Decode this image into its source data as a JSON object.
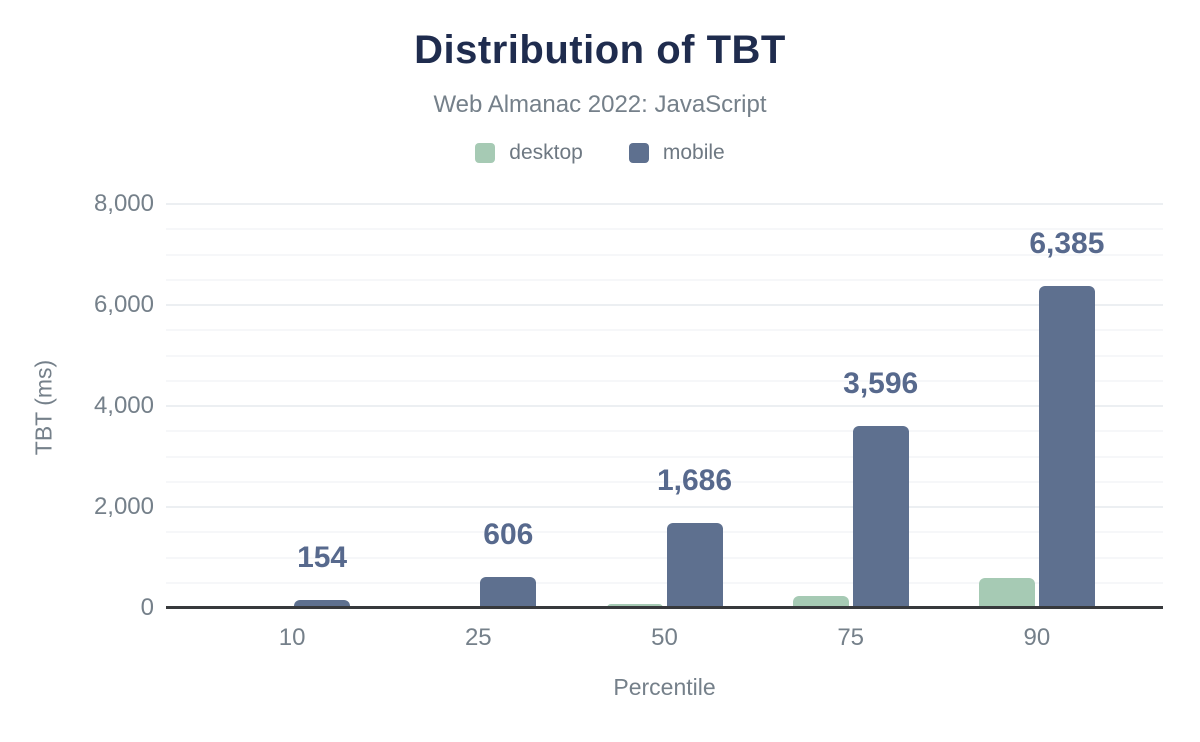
{
  "styles": {
    "page_background": "#ffffff",
    "title_color": "#1f2c4e",
    "muted_text_color": "#75808a",
    "legend_text_color": "#6e7882",
    "data_label_color": "#57698d",
    "axis_line_color": "#37393c",
    "grid_major_color": "#eceff2",
    "grid_minor_color": "#f6f7f9",
    "desktop_color": "#a6cab4",
    "mobile_color": "#5e708f"
  },
  "chart_data": {
    "type": "bar",
    "title": "Distribution of TBT",
    "subtitle": "Web Almanac 2022: JavaScript",
    "xlabel": "Percentile",
    "ylabel": "TBT (ms)",
    "categories": [
      "10",
      "25",
      "50",
      "75",
      "90"
    ],
    "series": [
      {
        "name": "desktop",
        "color": "#a6cab4",
        "values": [
          0,
          0,
          80,
          240,
          600
        ],
        "data_labels": [
          "",
          "",
          "",
          "",
          ""
        ]
      },
      {
        "name": "mobile",
        "color": "#5e708f",
        "values": [
          154,
          606,
          1686,
          3596,
          6385
        ],
        "data_labels": [
          "154",
          "606",
          "1,686",
          "3,596",
          "6,385"
        ]
      }
    ],
    "ylim": [
      0,
      8000
    ],
    "y_major_step": 2000,
    "y_minor_step": 500,
    "y_tick_labels": [
      "0",
      "2,000",
      "4,000",
      "6,000",
      "8,000"
    ],
    "grid": true,
    "legend_position": "top"
  }
}
